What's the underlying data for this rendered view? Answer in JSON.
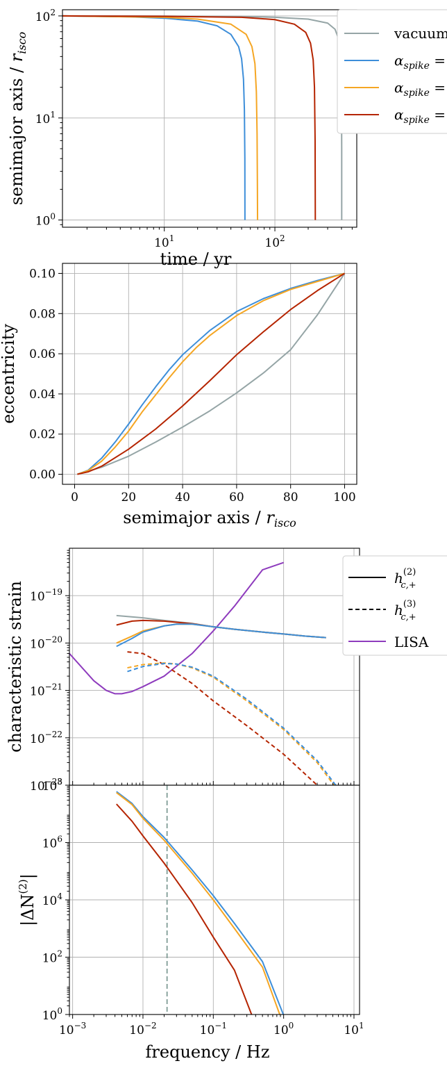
{
  "colors": {
    "vacuum": "#95a5a6",
    "alpha_blue": "#3d8ed9",
    "alpha_orange": "#f5a623",
    "alpha_red": "#b52400",
    "lisa": "#8e3bbd",
    "ref_line": "#7f9c96"
  },
  "chart_data": [
    {
      "id": "panel1",
      "type": "line",
      "xscale": "log",
      "yscale": "log",
      "xlim": [
        1.2,
        550
      ],
      "ylim": [
        0.85,
        115
      ],
      "xlabel": "time / yr",
      "ylabel": "semimajor axis / r_isco",
      "ylabel_main": "semimajor axis / ",
      "ylabel_r": "r",
      "ylabel_sub": "isco",
      "xticks": [
        {
          "value": 10,
          "base": "10",
          "exp": "1"
        },
        {
          "value": 100,
          "base": "10",
          "exp": "2"
        }
      ],
      "yticks": [
        {
          "value": 1,
          "base": "10",
          "exp": "0"
        },
        {
          "value": 10,
          "base": "10",
          "exp": "1"
        },
        {
          "value": 100,
          "base": "10",
          "exp": "2"
        }
      ],
      "grid": true,
      "legend_position": "upper right (clipped)",
      "legend": [
        {
          "text": "vacuum",
          "color_key": "vacuum"
        },
        {
          "text": "α_spike =",
          "color_key": "alpha_blue"
        },
        {
          "text": "α_spike =",
          "color_key": "alpha_orange"
        },
        {
          "text": "α_spike =",
          "color_key": "alpha_red"
        }
      ],
      "series": [
        {
          "color_key": "vacuum",
          "x": [
            1.2,
            10,
            50,
            100,
            200,
            300,
            350,
            380,
            395,
            400,
            402,
            402
          ],
          "y": [
            100,
            99.7,
            98.6,
            97,
            93,
            85,
            74,
            58,
            36,
            18,
            5,
            1
          ]
        },
        {
          "color_key": "alpha_blue",
          "x": [
            1.2,
            5,
            10,
            20,
            30,
            40,
            47,
            50,
            52,
            53,
            53.5,
            53.6
          ],
          "y": [
            100,
            98,
            95,
            89,
            80,
            66,
            50,
            38,
            24,
            12,
            4,
            1
          ]
        },
        {
          "color_key": "alpha_orange",
          "x": [
            1.2,
            10,
            20,
            40,
            55,
            62,
            66,
            68,
            69,
            69.5,
            69.7
          ],
          "y": [
            100,
            97,
            93,
            83,
            66,
            50,
            34,
            18,
            7,
            2,
            1
          ]
        },
        {
          "color_key": "alpha_red",
          "x": [
            1.2,
            10,
            50,
            100,
            150,
            190,
            210,
            222,
            228,
            231,
            232
          ],
          "y": [
            100,
            99,
            97,
            92,
            83,
            69,
            54,
            37,
            20,
            6,
            1
          ]
        }
      ]
    },
    {
      "id": "panel2",
      "type": "line",
      "xscale": "linear",
      "yscale": "linear",
      "xlim": [
        -4.5,
        104.5
      ],
      "ylim": [
        -0.005,
        0.105
      ],
      "xlabel": "semimajor axis / r_isco",
      "xlabel_main": "semimajor axis / ",
      "xlabel_r": "r",
      "xlabel_sub": "isco",
      "ylabel": "eccentricity",
      "xticks": [
        0,
        20,
        40,
        60,
        80,
        100
      ],
      "xtick_labels": [
        "0",
        "20",
        "40",
        "60",
        "80",
        "100"
      ],
      "yticks": [
        0,
        0.02,
        0.04,
        0.06,
        0.08,
        0.1
      ],
      "ytick_labels": [
        "0.00",
        "0.02",
        "0.04",
        "0.06",
        "0.08",
        "0.10"
      ],
      "grid": true,
      "series": [
        {
          "color_key": "vacuum",
          "x": [
            1,
            10,
            20,
            30,
            40,
            50,
            60,
            70,
            80,
            90,
            100
          ],
          "y": [
            0,
            0.0035,
            0.009,
            0.016,
            0.0235,
            0.0315,
            0.0405,
            0.0505,
            0.062,
            0.0795,
            0.1
          ]
        },
        {
          "color_key": "alpha_blue",
          "x": [
            1,
            5,
            10,
            15,
            20,
            25,
            30,
            35,
            40,
            45,
            50,
            60,
            70,
            80,
            90,
            100
          ],
          "y": [
            0,
            0.002,
            0.008,
            0.016,
            0.025,
            0.0345,
            0.0435,
            0.052,
            0.0595,
            0.0655,
            0.0715,
            0.081,
            0.0875,
            0.0925,
            0.0965,
            0.1
          ]
        },
        {
          "color_key": "alpha_orange",
          "x": [
            1,
            5,
            10,
            15,
            20,
            25,
            30,
            35,
            40,
            45,
            50,
            60,
            70,
            80,
            90,
            100
          ],
          "y": [
            0,
            0.0018,
            0.0065,
            0.0135,
            0.0215,
            0.031,
            0.0395,
            0.048,
            0.056,
            0.063,
            0.069,
            0.079,
            0.0865,
            0.092,
            0.096,
            0.1
          ]
        },
        {
          "color_key": "alpha_red",
          "x": [
            1,
            5,
            10,
            20,
            30,
            40,
            50,
            60,
            70,
            80,
            90,
            100
          ],
          "y": [
            0,
            0.0012,
            0.004,
            0.0125,
            0.0225,
            0.034,
            0.0465,
            0.0595,
            0.071,
            0.082,
            0.0915,
            0.1
          ]
        }
      ]
    },
    {
      "id": "panel3",
      "type": "line",
      "xscale": "log",
      "yscale": "log",
      "xlim": [
        0.0009,
        12
      ],
      "ylim": [
        1e-23,
        1e-18
      ],
      "ylabel": "characteristic strain",
      "yticks": [
        {
          "value": 1e-19,
          "base": "10",
          "exp": "−19"
        },
        {
          "value": 1e-20,
          "base": "10",
          "exp": "−20"
        },
        {
          "value": 1e-21,
          "base": "10",
          "exp": "−21"
        },
        {
          "value": 1e-22,
          "base": "10",
          "exp": "−22"
        },
        {
          "value": 1e-23,
          "base": "10",
          "exp": "−23"
        }
      ],
      "grid": true,
      "legend_position": "upper right (clipped)",
      "legend": [
        {
          "text": "h_{c,+}^{(2)}",
          "base": "h",
          "sub": "c,+",
          "sup": "(2)",
          "style": "solid",
          "color": "#000000"
        },
        {
          "text": "h_{c,+}^{(3)}",
          "base": "h",
          "sub": "c,+",
          "sup": "(3)",
          "style": "dashed",
          "color": "#000000"
        },
        {
          "text": "LISA",
          "style": "solid",
          "color_key": "lisa"
        }
      ],
      "series": [
        {
          "color_key": "lisa",
          "dash": false,
          "x": [
            0.0009,
            0.002,
            0.003,
            0.004,
            0.005,
            0.007,
            0.01,
            0.02,
            0.05,
            0.1,
            0.2,
            0.5,
            1
          ],
          "y": [
            6e-21,
            1.6e-21,
            1e-21,
            8.5e-22,
            8.5e-22,
            9.5e-22,
            1.2e-21,
            2e-21,
            6e-21,
            1.8e-20,
            6e-20,
            3.5e-19,
            5e-19
          ]
        },
        {
          "color_key": "vacuum",
          "dash": false,
          "x": [
            0.0042,
            0.01,
            0.02,
            0.05,
            0.1,
            0.2,
            0.5,
            1,
            2,
            4
          ],
          "y": [
            3.8e-20,
            3.4e-20,
            3e-20,
            2.6e-20,
            2.2e-20,
            1.95e-20,
            1.7e-20,
            1.55e-20,
            1.4e-20,
            1.3e-20
          ]
        },
        {
          "color_key": "alpha_red",
          "dash": false,
          "x": [
            0.0042,
            0.007,
            0.01,
            0.02,
            0.05,
            0.1,
            0.2,
            0.5,
            1,
            2,
            4
          ],
          "y": [
            2.4e-20,
            2.9e-20,
            3e-20,
            2.9e-20,
            2.55e-20,
            2.2e-20,
            1.95e-20,
            1.7e-20,
            1.55e-20,
            1.4e-20,
            1.3e-20
          ]
        },
        {
          "color_key": "alpha_orange",
          "dash": false,
          "x": [
            0.0042,
            0.007,
            0.01,
            0.02,
            0.03,
            0.05,
            0.1,
            0.2,
            0.5,
            1,
            2,
            4
          ],
          "y": [
            1e-20,
            1.4e-20,
            1.8e-20,
            2.3e-20,
            2.5e-20,
            2.5e-20,
            2.2e-20,
            1.95e-20,
            1.7e-20,
            1.55e-20,
            1.4e-20,
            1.3e-20
          ]
        },
        {
          "color_key": "alpha_blue",
          "dash": false,
          "x": [
            0.0042,
            0.007,
            0.01,
            0.02,
            0.03,
            0.05,
            0.1,
            0.2,
            0.5,
            1,
            2,
            4
          ],
          "y": [
            8.5e-21,
            1.25e-20,
            1.7e-20,
            2.3e-20,
            2.5e-20,
            2.5e-20,
            2.2e-20,
            1.95e-20,
            1.7e-20,
            1.55e-20,
            1.4e-20,
            1.3e-20
          ]
        },
        {
          "color_key": "alpha_red",
          "dash": true,
          "x": [
            0.006,
            0.01,
            0.02,
            0.05,
            0.1,
            0.3,
            1,
            3
          ],
          "y": [
            6.5e-21,
            6e-21,
            3.5e-21,
            1.4e-21,
            6e-22,
            1.8e-22,
            4.5e-23,
            1e-23
          ]
        },
        {
          "color_key": "alpha_orange",
          "dash": true,
          "x": [
            0.006,
            0.01,
            0.02,
            0.03,
            0.05,
            0.1,
            0.3,
            1,
            3,
            5.2
          ],
          "y": [
            3e-21,
            3.5e-21,
            3.8e-21,
            3.6e-21,
            3e-21,
            1.9e-21,
            6e-22,
            1.5e-22,
            3e-23,
            1e-23
          ]
        },
        {
          "color_key": "alpha_blue",
          "dash": true,
          "x": [
            0.006,
            0.01,
            0.02,
            0.03,
            0.05,
            0.1,
            0.3,
            1,
            3,
            5.5
          ],
          "y": [
            2.5e-21,
            3.2e-21,
            3.7e-21,
            3.6e-21,
            3.1e-21,
            2e-21,
            6.5e-22,
            1.6e-22,
            3.3e-23,
            1e-23
          ]
        }
      ]
    },
    {
      "id": "panel4",
      "type": "line",
      "xscale": "log",
      "yscale": "log",
      "xlim": [
        0.0009,
        12
      ],
      "ylim": [
        1,
        100000000.0
      ],
      "xlabel": "frequency / Hz",
      "ylabel": "|ΔN^(2)|",
      "ylabel_parts": {
        "main": "|ΔN",
        "sup": "(2)",
        "end": "|"
      },
      "xticks": [
        {
          "value": 0.001,
          "base": "10",
          "exp": "−3"
        },
        {
          "value": 0.01,
          "base": "10",
          "exp": "−2"
        },
        {
          "value": 0.1,
          "base": "10",
          "exp": "−1"
        },
        {
          "value": 1,
          "base": "10",
          "exp": "0"
        },
        {
          "value": 10,
          "base": "10",
          "exp": "1"
        }
      ],
      "yticks": [
        {
          "value": 1,
          "base": "10",
          "exp": "0"
        },
        {
          "value": 100,
          "base": "10",
          "exp": "2"
        },
        {
          "value": 10000,
          "base": "10",
          "exp": "4"
        },
        {
          "value": 1000000,
          "base": "10",
          "exp": "6"
        },
        {
          "value": 100000000,
          "base": "10",
          "exp": "8"
        }
      ],
      "grid": true,
      "reference_line": {
        "x": 0.022,
        "style": "dashed",
        "color_key": "ref_line"
      },
      "series": [
        {
          "color_key": "alpha_blue",
          "x": [
            0.0042,
            0.007,
            0.01,
            0.02,
            0.05,
            0.1,
            0.2,
            0.5,
            0.99
          ],
          "y": [
            60000000,
            23000000,
            8000000,
            1500000,
            110000,
            14000,
            1500,
            70,
            1
          ]
        },
        {
          "color_key": "alpha_orange",
          "x": [
            0.0042,
            0.007,
            0.01,
            0.02,
            0.05,
            0.1,
            0.2,
            0.5,
            0.88
          ],
          "y": [
            55000000,
            21000000,
            7000000,
            1200000,
            85000,
            10000,
            1000,
            45,
            1
          ]
        },
        {
          "color_key": "alpha_red",
          "x": [
            0.0042,
            0.007,
            0.01,
            0.02,
            0.05,
            0.1,
            0.2,
            0.35
          ],
          "y": [
            22000000,
            5500000,
            1700000,
            190000,
            8000,
            500,
            35,
            1
          ]
        }
      ]
    }
  ]
}
